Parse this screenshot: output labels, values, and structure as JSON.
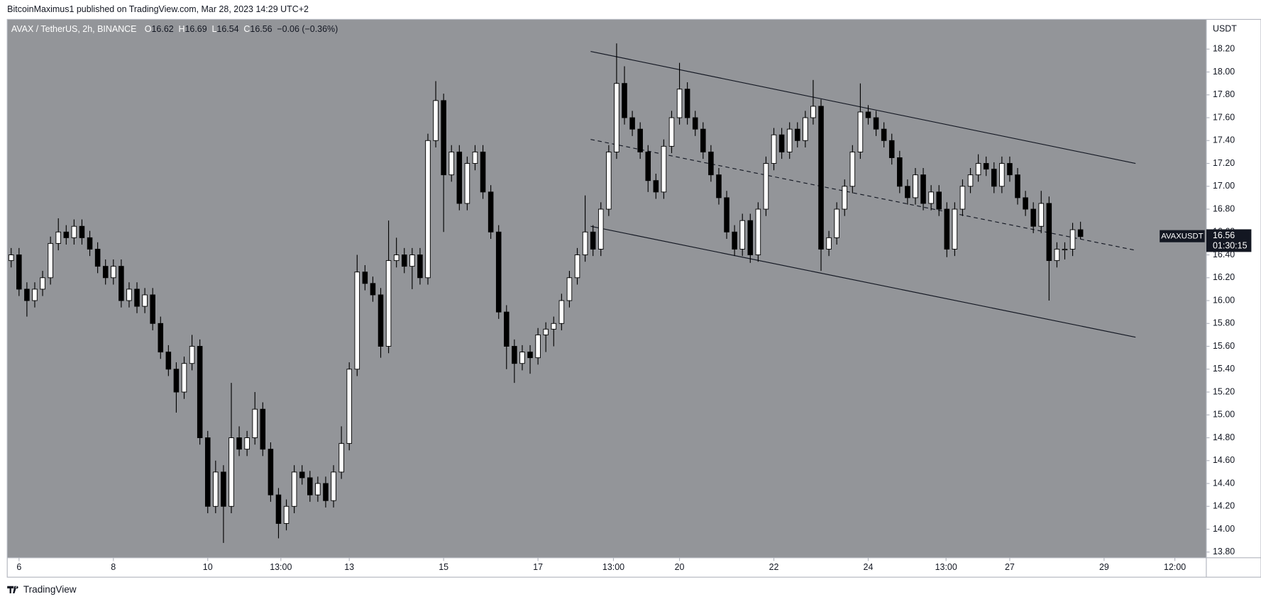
{
  "header": "BitcoinMaximus1 published on TradingView.com, Mar 28, 2023 14:29 UTC+2",
  "footer": "TradingView",
  "chart_data": {
    "type": "candlestick",
    "title": "AVAX / TetherUS, 2h, BINANCE",
    "ohlc_prefixes": [
      "O",
      "H",
      "L",
      "C"
    ],
    "change": "−0.06 (−0.36%)",
    "symbol": "AVAXUSDT",
    "countdown": "01:30:15",
    "y_unit": "USDT",
    "up_color": "#ffffff",
    "down_color": "#000000",
    "xlim": [
      -0.5,
      152
    ],
    "ylim": [
      13.75,
      18.46
    ],
    "xticks": [
      {
        "value": 1,
        "label": "6"
      },
      {
        "value": 13,
        "label": "8"
      },
      {
        "value": 25,
        "label": "10"
      },
      {
        "value": 34.3,
        "label": "13:00"
      },
      {
        "value": 43,
        "label": "13"
      },
      {
        "value": 55,
        "label": "15"
      },
      {
        "value": 67,
        "label": "17"
      },
      {
        "value": 76.6,
        "label": "13:00"
      },
      {
        "value": 85,
        "label": "20"
      },
      {
        "value": 97,
        "label": "22"
      },
      {
        "value": 109,
        "label": "24"
      },
      {
        "value": 118.9,
        "label": "13:00"
      },
      {
        "value": 127,
        "label": "27"
      },
      {
        "value": 139,
        "label": "29"
      },
      {
        "value": 148,
        "label": "12:00"
      }
    ],
    "yticks": [
      {
        "value": 13.8,
        "label": "13.80"
      },
      {
        "value": 14,
        "label": "14.00"
      },
      {
        "value": 14.2,
        "label": "14.20"
      },
      {
        "value": 14.4,
        "label": "14.40"
      },
      {
        "value": 14.6,
        "label": "14.60"
      },
      {
        "value": 14.8,
        "label": "14.80"
      },
      {
        "value": 15,
        "label": "15.00"
      },
      {
        "value": 15.2,
        "label": "15.20"
      },
      {
        "value": 15.4,
        "label": "15.40"
      },
      {
        "value": 15.6,
        "label": "15.60"
      },
      {
        "value": 15.8,
        "label": "15.80"
      },
      {
        "value": 16,
        "label": "16.00"
      },
      {
        "value": 16.2,
        "label": "16.20"
      },
      {
        "value": 16.4,
        "label": "16.40"
      },
      {
        "value": 16.6,
        "label": "16.60"
      },
      {
        "value": 16.8,
        "label": "16.80"
      },
      {
        "value": 17,
        "label": "17.00"
      },
      {
        "value": 17.2,
        "label": "17.20"
      },
      {
        "value": 17.4,
        "label": "17.40"
      },
      {
        "value": 17.6,
        "label": "17.60"
      },
      {
        "value": 17.8,
        "label": "17.80"
      },
      {
        "value": 18,
        "label": "18.00"
      },
      {
        "value": 18.2,
        "label": "18.20"
      }
    ],
    "trend_lines": [
      {
        "x": [
          73.7,
          143
        ],
        "y": [
          18.18,
          17.2
        ],
        "dashed": false
      },
      {
        "x": [
          73.7,
          143
        ],
        "y": [
          17.41,
          16.44
        ],
        "dashed": true
      },
      {
        "x": [
          73.7,
          143
        ],
        "y": [
          16.65,
          15.68
        ],
        "dashed": false
      }
    ],
    "ohlc": [
      [
        16.35,
        16.46,
        16.29,
        16.4
      ],
      [
        16.4,
        16.46,
        16.04,
        16.1
      ],
      [
        16.1,
        16.16,
        15.86,
        16.0
      ],
      [
        16.0,
        16.16,
        15.94,
        16.1
      ],
      [
        16.1,
        16.26,
        16.04,
        16.2
      ],
      [
        16.2,
        16.56,
        16.14,
        16.5
      ],
      [
        16.5,
        16.72,
        16.44,
        16.6
      ],
      [
        16.6,
        16.66,
        16.49,
        16.55
      ],
      [
        16.55,
        16.71,
        16.49,
        16.65
      ],
      [
        16.65,
        16.71,
        16.49,
        16.55
      ],
      [
        16.55,
        16.61,
        16.39,
        16.45
      ],
      [
        16.45,
        16.51,
        16.24,
        16.3
      ],
      [
        16.3,
        16.36,
        16.14,
        16.2
      ],
      [
        16.2,
        16.36,
        16.14,
        16.3
      ],
      [
        16.3,
        16.36,
        15.94,
        16.0
      ],
      [
        16.0,
        16.16,
        15.94,
        16.1
      ],
      [
        16.1,
        16.16,
        15.89,
        15.95
      ],
      [
        15.95,
        16.11,
        15.89,
        16.05
      ],
      [
        16.05,
        16.11,
        15.74,
        15.8
      ],
      [
        15.8,
        15.86,
        15.49,
        15.55
      ],
      [
        15.55,
        15.61,
        15.34,
        15.4
      ],
      [
        15.4,
        15.46,
        15.02,
        15.2
      ],
      [
        15.2,
        15.51,
        15.14,
        15.45
      ],
      [
        15.45,
        15.7,
        15.39,
        15.6
      ],
      [
        15.6,
        15.66,
        14.74,
        14.8
      ],
      [
        14.8,
        14.86,
        14.14,
        14.2
      ],
      [
        14.2,
        14.6,
        14.14,
        14.5
      ],
      [
        14.5,
        14.56,
        13.88,
        14.2
      ],
      [
        14.2,
        15.28,
        14.14,
        14.8
      ],
      [
        14.8,
        14.9,
        14.64,
        14.7
      ],
      [
        14.7,
        14.86,
        14.64,
        14.8
      ],
      [
        14.8,
        15.2,
        14.74,
        15.05
      ],
      [
        15.05,
        15.11,
        14.64,
        14.7
      ],
      [
        14.7,
        14.76,
        14.24,
        14.3
      ],
      [
        14.3,
        14.36,
        13.92,
        14.05
      ],
      [
        14.05,
        14.26,
        13.99,
        14.2
      ],
      [
        14.2,
        14.56,
        14.14,
        14.5
      ],
      [
        14.5,
        14.56,
        14.39,
        14.45
      ],
      [
        14.45,
        14.51,
        14.24,
        14.3
      ],
      [
        14.3,
        14.46,
        14.24,
        14.4
      ],
      [
        14.4,
        14.46,
        14.19,
        14.25
      ],
      [
        14.25,
        14.56,
        14.19,
        14.5
      ],
      [
        14.5,
        14.9,
        14.44,
        14.75
      ],
      [
        14.75,
        15.46,
        14.69,
        15.4
      ],
      [
        15.4,
        16.4,
        15.34,
        16.25
      ],
      [
        16.25,
        16.31,
        16.09,
        16.15
      ],
      [
        16.15,
        16.21,
        15.99,
        16.05
      ],
      [
        16.05,
        16.11,
        15.5,
        15.6
      ],
      [
        15.6,
        16.7,
        15.54,
        16.35
      ],
      [
        16.35,
        16.55,
        16.29,
        16.4
      ],
      [
        16.4,
        16.46,
        16.24,
        16.3
      ],
      [
        16.3,
        16.46,
        16.1,
        16.4
      ],
      [
        16.4,
        16.46,
        16.14,
        16.2
      ],
      [
        16.2,
        17.46,
        16.14,
        17.4
      ],
      [
        17.4,
        17.92,
        17.34,
        17.75
      ],
      [
        17.75,
        17.81,
        16.6,
        17.1
      ],
      [
        17.1,
        17.36,
        17.04,
        17.3
      ],
      [
        17.3,
        17.36,
        16.79,
        16.85
      ],
      [
        16.85,
        17.26,
        16.79,
        17.2
      ],
      [
        17.2,
        17.36,
        17.14,
        17.3
      ],
      [
        17.3,
        17.36,
        16.89,
        16.95
      ],
      [
        16.95,
        17.01,
        16.54,
        16.6
      ],
      [
        16.6,
        16.66,
        15.84,
        15.9
      ],
      [
        15.9,
        15.96,
        15.4,
        15.6
      ],
      [
        15.6,
        15.66,
        15.28,
        15.45
      ],
      [
        15.45,
        15.61,
        15.39,
        15.55
      ],
      [
        15.55,
        15.61,
        15.36,
        15.5
      ],
      [
        15.5,
        15.76,
        15.44,
        15.7
      ],
      [
        15.7,
        15.81,
        15.55,
        15.75
      ],
      [
        15.75,
        15.86,
        15.6,
        15.8
      ],
      [
        15.8,
        16.06,
        15.74,
        16.0
      ],
      [
        16.0,
        16.26,
        15.94,
        16.2
      ],
      [
        16.2,
        16.46,
        16.14,
        16.4
      ],
      [
        16.4,
        16.92,
        16.34,
        16.6
      ],
      [
        16.6,
        16.66,
        16.39,
        16.45
      ],
      [
        16.45,
        16.86,
        16.39,
        16.8
      ],
      [
        16.8,
        17.36,
        16.74,
        17.3
      ],
      [
        17.3,
        18.25,
        17.24,
        17.9
      ],
      [
        17.9,
        18.05,
        17.54,
        17.6
      ],
      [
        17.6,
        17.66,
        17.44,
        17.5
      ],
      [
        17.5,
        17.56,
        17.24,
        17.3
      ],
      [
        17.3,
        17.36,
        16.95,
        17.05
      ],
      [
        17.05,
        17.11,
        16.89,
        16.95
      ],
      [
        16.95,
        17.41,
        16.89,
        17.35
      ],
      [
        17.35,
        17.66,
        17.29,
        17.6
      ],
      [
        17.6,
        18.08,
        17.54,
        17.85
      ],
      [
        17.85,
        17.91,
        17.54,
        17.6
      ],
      [
        17.6,
        17.66,
        17.44,
        17.5
      ],
      [
        17.5,
        17.56,
        17.24,
        17.3
      ],
      [
        17.3,
        17.36,
        17.04,
        17.1
      ],
      [
        17.1,
        17.16,
        16.84,
        16.9
      ],
      [
        16.9,
        16.96,
        16.54,
        16.6
      ],
      [
        16.6,
        16.66,
        16.39,
        16.45
      ],
      [
        16.45,
        16.76,
        16.39,
        16.7
      ],
      [
        16.7,
        16.76,
        16.33,
        16.4
      ],
      [
        16.4,
        16.86,
        16.34,
        16.8
      ],
      [
        16.8,
        17.26,
        16.74,
        17.2
      ],
      [
        17.2,
        17.51,
        17.14,
        17.45
      ],
      [
        17.45,
        17.51,
        17.24,
        17.3
      ],
      [
        17.3,
        17.56,
        17.24,
        17.5
      ],
      [
        17.5,
        17.56,
        17.34,
        17.4
      ],
      [
        17.4,
        17.66,
        17.34,
        17.6
      ],
      [
        17.6,
        17.93,
        17.54,
        17.7
      ],
      [
        17.7,
        17.76,
        16.26,
        16.45
      ],
      [
        16.45,
        16.61,
        16.39,
        16.55
      ],
      [
        16.55,
        16.86,
        16.49,
        16.8
      ],
      [
        16.8,
        17.06,
        16.74,
        17.0
      ],
      [
        17.0,
        17.36,
        16.94,
        17.3
      ],
      [
        17.3,
        17.9,
        17.24,
        17.65
      ],
      [
        17.65,
        17.71,
        17.54,
        17.6
      ],
      [
        17.6,
        17.66,
        17.44,
        17.5
      ],
      [
        17.5,
        17.56,
        17.34,
        17.4
      ],
      [
        17.4,
        17.46,
        17.19,
        17.25
      ],
      [
        17.25,
        17.31,
        16.94,
        17.0
      ],
      [
        17.0,
        17.06,
        16.84,
        16.9
      ],
      [
        16.9,
        17.16,
        16.84,
        17.1
      ],
      [
        17.1,
        17.16,
        16.79,
        16.85
      ],
      [
        16.85,
        17.01,
        16.79,
        16.95
      ],
      [
        16.95,
        17.01,
        16.74,
        16.8
      ],
      [
        16.8,
        16.86,
        16.38,
        16.45
      ],
      [
        16.45,
        16.86,
        16.39,
        16.8
      ],
      [
        16.8,
        17.06,
        16.74,
        17.0
      ],
      [
        17.0,
        17.16,
        16.94,
        17.1
      ],
      [
        17.1,
        17.28,
        17.04,
        17.2
      ],
      [
        17.2,
        17.26,
        17.09,
        17.15
      ],
      [
        17.15,
        17.21,
        16.94,
        17.0
      ],
      [
        17.0,
        17.26,
        16.94,
        17.2
      ],
      [
        17.2,
        17.26,
        17.04,
        17.1
      ],
      [
        17.1,
        17.16,
        16.84,
        16.9
      ],
      [
        16.9,
        16.96,
        16.74,
        16.8
      ],
      [
        16.8,
        16.86,
        16.59,
        16.65
      ],
      [
        16.65,
        16.96,
        16.59,
        16.85
      ],
      [
        16.85,
        16.91,
        16.0,
        16.35
      ],
      [
        16.35,
        16.51,
        16.29,
        16.45
      ],
      [
        16.45,
        16.51,
        16.36,
        16.45
      ],
      [
        16.45,
        16.68,
        16.39,
        16.62
      ],
      [
        16.62,
        16.69,
        16.54,
        16.56
      ]
    ]
  }
}
